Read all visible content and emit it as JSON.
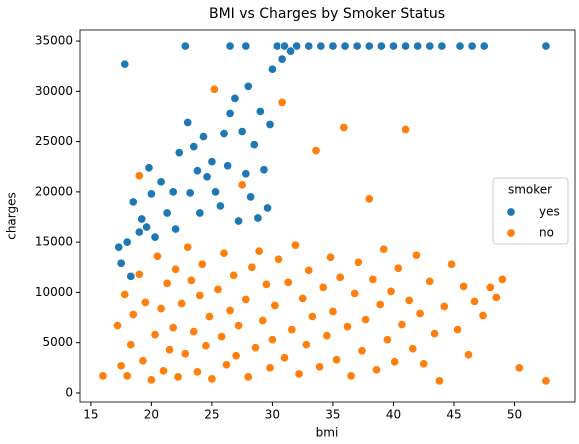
{
  "chart_data": {
    "type": "scatter",
    "title": "BMI vs Charges by Smoker Status",
    "x_label": "bmi",
    "y_label": "charges",
    "legend_title": "smoker",
    "legend": "center right",
    "xlim": [
      14.1,
      55
    ],
    "xticks": [
      15,
      20,
      25,
      30,
      35,
      40,
      45,
      50
    ],
    "ylim": [
      -900,
      36100
    ],
    "yticks": [
      0,
      5000,
      10000,
      15000,
      20000,
      25000,
      30000,
      35000
    ],
    "series": [
      {
        "name": "yes",
        "color": "#1f77b4",
        "x": [
          17.3,
          17.5,
          17.8,
          18.0,
          18.3,
          18.5,
          19.0,
          19.2,
          19.6,
          19.8,
          20.0,
          20.3,
          20.8,
          21.3,
          21.8,
          22.0,
          22.3,
          22.8,
          23.0,
          23.2,
          23.5,
          23.8,
          24.0,
          24.3,
          24.6,
          25.0,
          25.3,
          25.7,
          26.0,
          26.3,
          26.5,
          26.9,
          27.2,
          27.5,
          27.8,
          28.0,
          28.2,
          28.5,
          28.8,
          29.0,
          29.3,
          29.6,
          29.8,
          30.0,
          30.4,
          31,
          32,
          33,
          34,
          35,
          36,
          37,
          38,
          39,
          40,
          41,
          42,
          43,
          44,
          45.5,
          46.5,
          47.5,
          52.6,
          26.5,
          27.8,
          30.8,
          31.5
        ],
        "values": [
          14500,
          12900,
          32700,
          15000,
          11600,
          19000,
          16000,
          17300,
          16500,
          22400,
          19800,
          15500,
          21000,
          17900,
          20000,
          16300,
          23900,
          34500,
          26900,
          19900,
          24500,
          22100,
          17900,
          25500,
          21500,
          23000,
          20000,
          18600,
          25800,
          22600,
          27800,
          29300,
          17100,
          26000,
          21800,
          30500,
          19500,
          24700,
          17400,
          28000,
          22200,
          18400,
          26700,
          32200,
          34500,
          34500,
          34500,
          34500,
          34500,
          34500,
          34500,
          34500,
          34500,
          34500,
          34500,
          34500,
          34500,
          34500,
          34500,
          34500,
          34500,
          34500,
          34500,
          34500,
          34500,
          33200,
          34000
        ]
      },
      {
        "name": "no",
        "color": "#ff7f0e",
        "x": [
          16.0,
          17.2,
          17.5,
          17.8,
          18.0,
          18.3,
          18.5,
          19.0,
          19.3,
          19.5,
          19.0,
          20.0,
          20.3,
          20.5,
          20.8,
          21.0,
          21.3,
          21.5,
          21.8,
          22.0,
          22.2,
          22.5,
          22.8,
          23.0,
          23.3,
          23.5,
          23.8,
          24.0,
          24.2,
          24.5,
          24.8,
          25.0,
          25.2,
          25.5,
          25.8,
          26.0,
          26.2,
          26.5,
          26.8,
          27.0,
          27.2,
          27.5,
          27.8,
          28.0,
          28.3,
          28.6,
          28.9,
          29.2,
          29.5,
          29.8,
          30.0,
          30.2,
          30.5,
          30.8,
          31.0,
          31.3,
          31.6,
          31.9,
          32.2,
          32.5,
          32.8,
          33.0,
          33.3,
          33.6,
          33.9,
          34.2,
          34.5,
          34.8,
          35.0,
          35.3,
          35.6,
          35.9,
          36.2,
          36.5,
          36.8,
          37.1,
          37.4,
          37.7,
          38.0,
          38.3,
          38.6,
          38.9,
          39.2,
          39.5,
          39.8,
          40.1,
          40.4,
          40.7,
          41.0,
          41.3,
          41.6,
          41.9,
          42.2,
          42.5,
          43.0,
          43.4,
          43.8,
          44.2,
          44.8,
          45.3,
          45.8,
          46.2,
          46.7,
          47.4,
          48.0,
          48.5,
          49.0,
          50.4,
          52.6
        ],
        "values": [
          1700,
          6700,
          2700,
          9800,
          1700,
          4800,
          7800,
          11800,
          3200,
          9000,
          21600,
          1300,
          5800,
          13600,
          8400,
          2200,
          10900,
          4300,
          6500,
          12300,
          1600,
          8900,
          3900,
          14500,
          11200,
          6100,
          2100,
          9700,
          12800,
          4700,
          7600,
          1400,
          30200,
          10300,
          5600,
          13900,
          2800,
          8200,
          11700,
          3700,
          6700,
          20700,
          9300,
          1600,
          12500,
          4500,
          14100,
          7200,
          10800,
          2500,
          5300,
          8700,
          13300,
          28900,
          3500,
          11000,
          6300,
          14700,
          1900,
          9400,
          4800,
          12200,
          7600,
          24100,
          2600,
          10500,
          5700,
          13500,
          8100,
          3300,
          11500,
          26400,
          6600,
          1700,
          9900,
          13000,
          4200,
          7300,
          19300,
          11300,
          2300,
          8800,
          14300,
          5300,
          10100,
          3100,
          12400,
          6800,
          26200,
          9200,
          4400,
          13700,
          7900,
          2900,
          11100,
          5900,
          1200,
          8600,
          12800,
          6300,
          10600,
          3800,
          9100,
          7700,
          10500,
          9500,
          11300,
          2500,
          1200
        ]
      }
    ]
  }
}
